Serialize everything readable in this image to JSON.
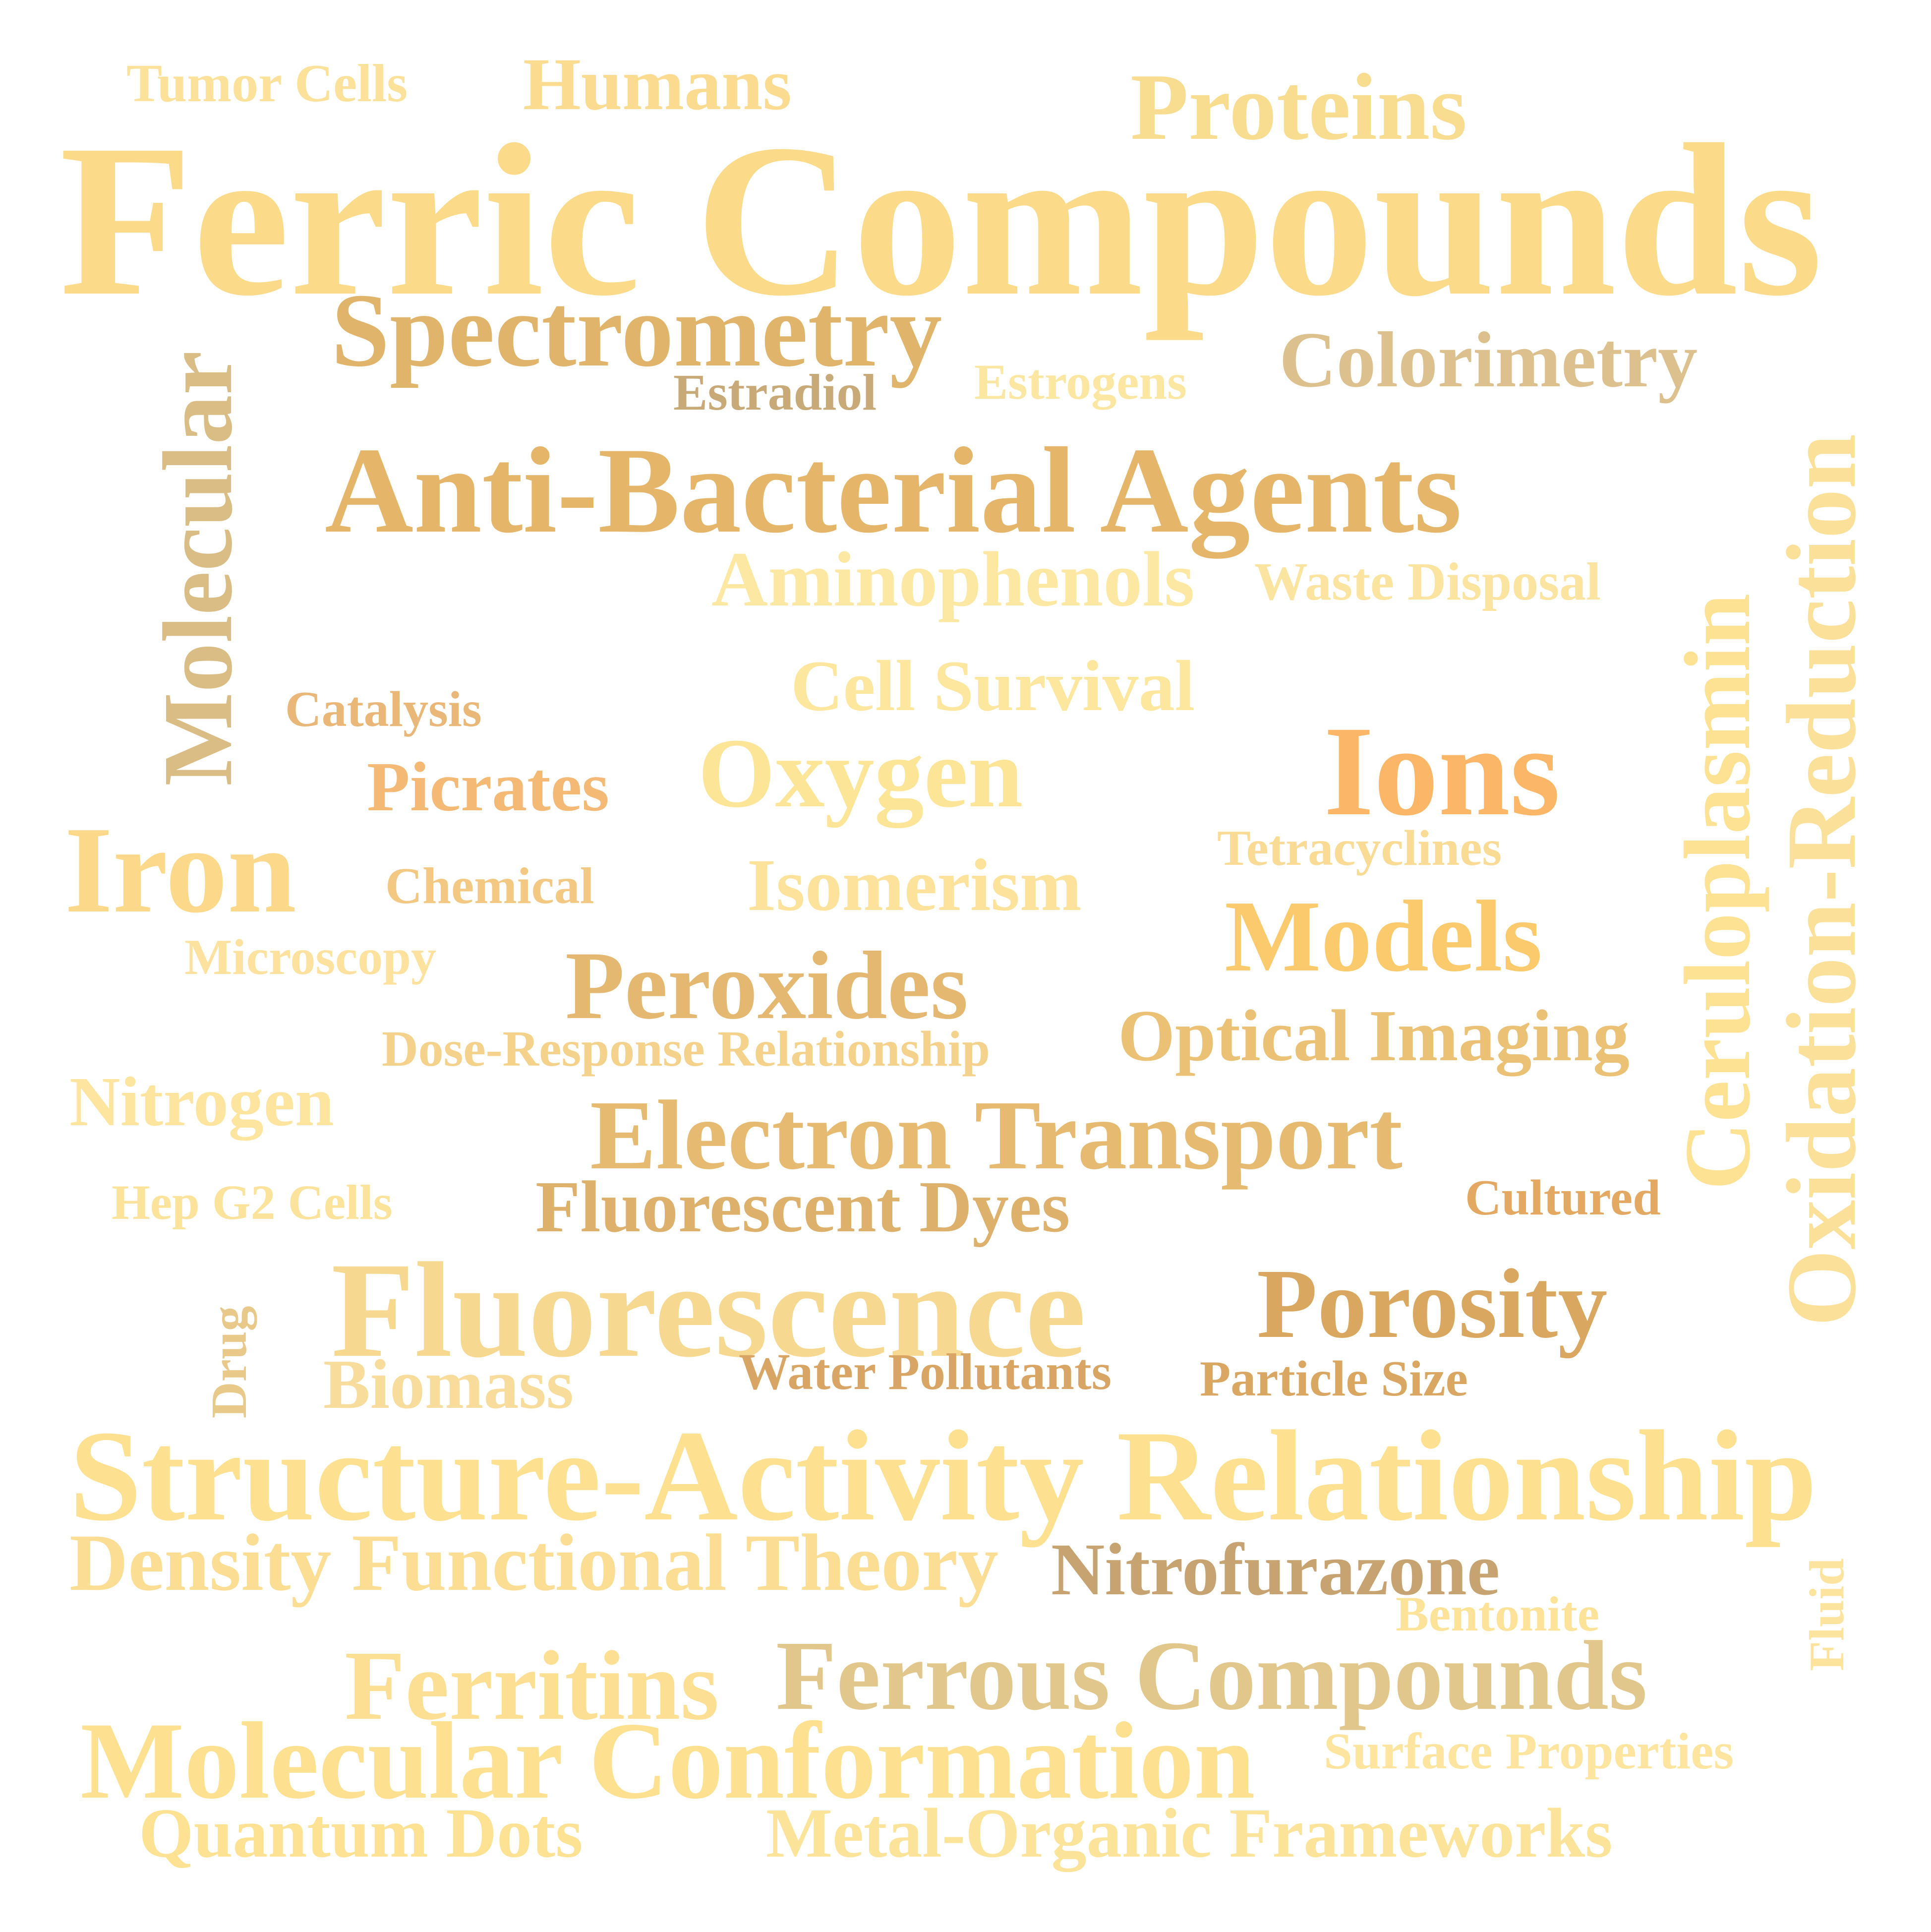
{
  "words": [
    {
      "text": "Tumor Cells",
      "color": "#fbe19a",
      "vertical": false
    },
    {
      "text": "Humans",
      "color": "#fbdb8f",
      "vertical": false
    },
    {
      "text": "Proteins",
      "color": "#f8dc90",
      "vertical": false
    },
    {
      "text": "Ferric Compounds",
      "color": "#fbdb8a",
      "vertical": false
    },
    {
      "text": "Spectrometry",
      "color": "#e1b46b",
      "vertical": false
    },
    {
      "text": "Colorimetry",
      "color": "#dcc08d",
      "vertical": false
    },
    {
      "text": "Estradiol",
      "color": "#c8a978",
      "vertical": false
    },
    {
      "text": "Estrogens",
      "color": "#fbe7a2",
      "vertical": false
    },
    {
      "text": "Molecular",
      "color": "#d9bd85",
      "vertical": true
    },
    {
      "text": "Anti-Bacterial Agents",
      "color": "#e5b56a",
      "vertical": false
    },
    {
      "text": "Aminophenols",
      "color": "#fce8a2",
      "vertical": false
    },
    {
      "text": "Waste Disposal",
      "color": "#fbe3a0",
      "vertical": false
    },
    {
      "text": "Ceruloplasmin",
      "color": "#fde294",
      "vertical": true
    },
    {
      "text": "Oxidation-Reduction",
      "color": "#fbe09a",
      "vertical": true
    },
    {
      "text": "Cell Survival",
      "color": "#fde79f",
      "vertical": false
    },
    {
      "text": "Catalysis",
      "color": "#e9b778",
      "vertical": false
    },
    {
      "text": "Oxygen",
      "color": "#fde597",
      "vertical": false
    },
    {
      "text": "Ions",
      "color": "#fbb767",
      "vertical": false
    },
    {
      "text": "Picrates",
      "color": "#f3b975",
      "vertical": false
    },
    {
      "text": "Iron",
      "color": "#fcd98a",
      "vertical": false
    },
    {
      "text": "Chemical",
      "color": "#f3c883",
      "vertical": false
    },
    {
      "text": "Isomerism",
      "color": "#fde29b",
      "vertical": false
    },
    {
      "text": "Tetracyclines",
      "color": "#fadb95",
      "vertical": false
    },
    {
      "text": "Models",
      "color": "#fbca6d",
      "vertical": false
    },
    {
      "text": "Microscopy",
      "color": "#fde29f",
      "vertical": false
    },
    {
      "text": "Peroxides",
      "color": "#e5b871",
      "vertical": false
    },
    {
      "text": "Dose-Response Relationship",
      "color": "#f5d28c",
      "vertical": false
    },
    {
      "text": "Optical Imaging",
      "color": "#ebc176",
      "vertical": false
    },
    {
      "text": "Nitrogen",
      "color": "#fde59f",
      "vertical": false
    },
    {
      "text": "Electron Transport",
      "color": "#e6ba70",
      "vertical": false
    },
    {
      "text": "Hep G2 Cells",
      "color": "#fbe39c",
      "vertical": false
    },
    {
      "text": "Fluorescent Dyes",
      "color": "#ddb06c",
      "vertical": false
    },
    {
      "text": "Cultured",
      "color": "#e3a963",
      "vertical": false
    },
    {
      "text": "Drug",
      "color": "#e8c98a",
      "vertical": true
    },
    {
      "text": "Fluorescence",
      "color": "#f7d891",
      "vertical": false
    },
    {
      "text": "Porosity",
      "color": "#d9a760",
      "vertical": false
    },
    {
      "text": "Biomass",
      "color": "#f7dc9c",
      "vertical": false
    },
    {
      "text": "Water Pollutants",
      "color": "#d8a565",
      "vertical": false
    },
    {
      "text": "Particle Size",
      "color": "#d9a762",
      "vertical": false
    },
    {
      "text": "Structure-Activity Relationship",
      "color": "#fde190",
      "vertical": false
    },
    {
      "text": "Density Functional Theory",
      "color": "#fbdd93",
      "vertical": false
    },
    {
      "text": "Nitrofurazone",
      "color": "#c6a371",
      "vertical": false
    },
    {
      "text": "Bentonite",
      "color": "#fde39a",
      "vertical": false
    },
    {
      "text": "Fluid",
      "color": "#fde49e",
      "vertical": true
    },
    {
      "text": "Ferritins",
      "color": "#fcdf92",
      "vertical": false
    },
    {
      "text": "Ferrous Compounds",
      "color": "#e2c78c",
      "vertical": false
    },
    {
      "text": "Molecular Conformation",
      "color": "#fde190",
      "vertical": false
    },
    {
      "text": "Surface Properties",
      "color": "#fde59f",
      "vertical": false
    },
    {
      "text": "Quantum Dots",
      "color": "#fde294",
      "vertical": false
    },
    {
      "text": "Metal-Organic Frameworks",
      "color": "#fbe39a",
      "vertical": false
    }
  ]
}
